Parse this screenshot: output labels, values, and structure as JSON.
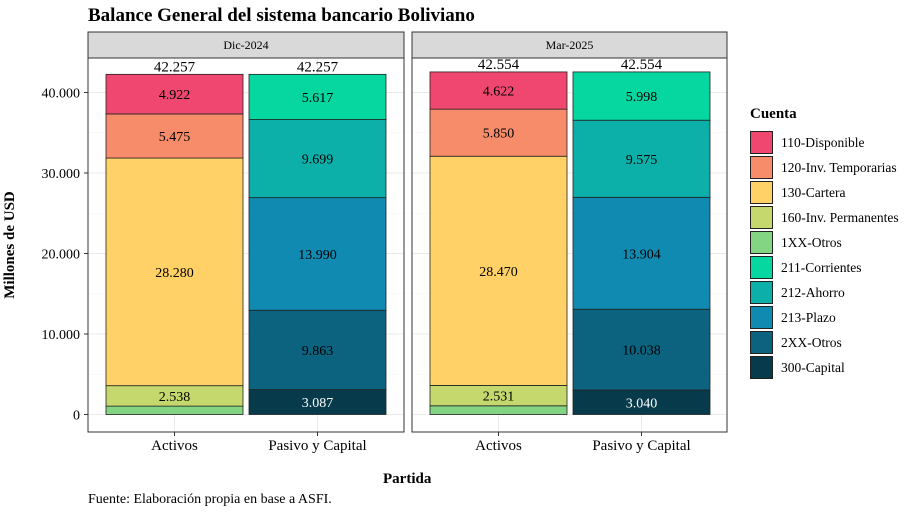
{
  "title": "Balance General del sistema bancario Boliviano",
  "caption": "Fuente: Elaboración propia en base a ASFI.",
  "chart_data": {
    "type": "bar",
    "stacked": true,
    "facets": [
      "Dic-2024",
      "Mar-2025"
    ],
    "categories": [
      "Activos",
      "Pasivo y Capital"
    ],
    "xlabel": "Partida",
    "ylabel": "Millones de USD",
    "ylim": [
      0,
      43000
    ],
    "yticks": [
      0,
      10000,
      20000,
      30000,
      40000
    ],
    "ytick_labels": [
      "0",
      "10.000",
      "20.000",
      "30.000",
      "40.000"
    ],
    "grid": true,
    "legend_title": "Cuenta",
    "legend_position": "right",
    "legend": [
      {
        "name": "110-Disponible",
        "color": "#EF476F"
      },
      {
        "name": "120-Inv. Temporarias",
        "color": "#F78C6B"
      },
      {
        "name": "130-Cartera",
        "color": "#FFD166"
      },
      {
        "name": "160-Inv. Permanentes",
        "color": "#C5D86D"
      },
      {
        "name": "1XX-Otros",
        "color": "#83D483"
      },
      {
        "name": "211-Corrientes",
        "color": "#06D6A0"
      },
      {
        "name": "212-Ahorro",
        "color": "#0CB0A9"
      },
      {
        "name": "213-Plazo",
        "color": "#118AB2"
      },
      {
        "name": "2XX-Otros",
        "color": "#0C637F"
      },
      {
        "name": "300-Capital",
        "color": "#073B4C"
      }
    ],
    "data": [
      {
        "facet": "Dic-2024",
        "bars": [
          {
            "category": "Activos",
            "total": 42257,
            "total_label": "42.257",
            "segments": [
              {
                "account": "1XX-Otros",
                "value": 1042,
                "label": ""
              },
              {
                "account": "160-Inv. Permanentes",
                "value": 2538,
                "label": "2.538"
              },
              {
                "account": "130-Cartera",
                "value": 28280,
                "label": "28.280"
              },
              {
                "account": "120-Inv. Temporarias",
                "value": 5475,
                "label": "5.475"
              },
              {
                "account": "110-Disponible",
                "value": 4922,
                "label": "4.922"
              }
            ]
          },
          {
            "category": "Pasivo y Capital",
            "total": 42257,
            "total_label": "42.257",
            "segments": [
              {
                "account": "300-Capital",
                "value": 3087,
                "label": "3.087"
              },
              {
                "account": "2XX-Otros",
                "value": 9863,
                "label": "9.863"
              },
              {
                "account": "213-Plazo",
                "value": 13990,
                "label": "13.990"
              },
              {
                "account": "212-Ahorro",
                "value": 9699,
                "label": "9.699"
              },
              {
                "account": "211-Corrientes",
                "value": 5617,
                "label": "5.617"
              }
            ]
          }
        ]
      },
      {
        "facet": "Mar-2025",
        "bars": [
          {
            "category": "Activos",
            "total": 42554,
            "total_label": "42.554",
            "segments": [
              {
                "account": "1XX-Otros",
                "value": 1081,
                "label": ""
              },
              {
                "account": "160-Inv. Permanentes",
                "value": 2531,
                "label": "2.531"
              },
              {
                "account": "130-Cartera",
                "value": 28470,
                "label": "28.470"
              },
              {
                "account": "120-Inv. Temporarias",
                "value": 5850,
                "label": "5.850"
              },
              {
                "account": "110-Disponible",
                "value": 4622,
                "label": "4.622"
              }
            ]
          },
          {
            "category": "Pasivo y Capital",
            "total": 42554,
            "total_label": "42.554",
            "segments": [
              {
                "account": "300-Capital",
                "value": 3040,
                "label": "3.040"
              },
              {
                "account": "2XX-Otros",
                "value": 10038,
                "label": "10.038"
              },
              {
                "account": "213-Plazo",
                "value": 13904,
                "label": "13.904"
              },
              {
                "account": "212-Ahorro",
                "value": 9575,
                "label": "9.575"
              },
              {
                "account": "211-Corrientes",
                "value": 5998,
                "label": "5.998"
              }
            ]
          }
        ]
      }
    ]
  }
}
